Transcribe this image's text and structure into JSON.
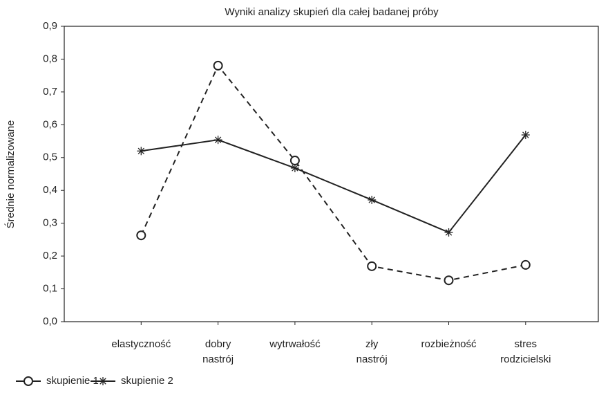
{
  "chart_data": {
    "type": "line",
    "title": "Wyniki analizy skupień dla całej badanej próby",
    "ylabel": "Średnie normalizowane",
    "categories": [
      "elastyczność",
      "dobry nastrój",
      "wytrwałość",
      "zły nastrój",
      "rozbieżność",
      "stres rodzicielski"
    ],
    "series": [
      {
        "name": "skupienie 1",
        "color": "#222222",
        "dashed": true,
        "marker": "circle",
        "values": [
          0.263,
          0.78,
          0.491,
          0.169,
          0.126,
          0.173
        ]
      },
      {
        "name": "skupienie 2",
        "color": "#222222",
        "dashed": false,
        "marker": "star",
        "values": [
          0.52,
          0.554,
          0.468,
          0.371,
          0.272,
          0.569
        ]
      }
    ],
    "ylim": [
      0,
      0.9
    ],
    "yticks": [
      {
        "value": 0,
        "label": "0,0"
      },
      {
        "value": 0.1,
        "label": "0,1"
      },
      {
        "value": 0.2,
        "label": "0,2"
      },
      {
        "value": 0.3,
        "label": "0,3"
      },
      {
        "value": 0.4,
        "label": "0,4"
      },
      {
        "value": 0.5,
        "label": "0,5"
      },
      {
        "value": 0.6,
        "label": "0,6"
      },
      {
        "value": 0.7,
        "label": "0,7"
      },
      {
        "value": 0.8,
        "label": "0,8"
      },
      {
        "value": 0.9,
        "label": "0,9"
      }
    ],
    "grid": false,
    "legend": "bottom-left"
  }
}
